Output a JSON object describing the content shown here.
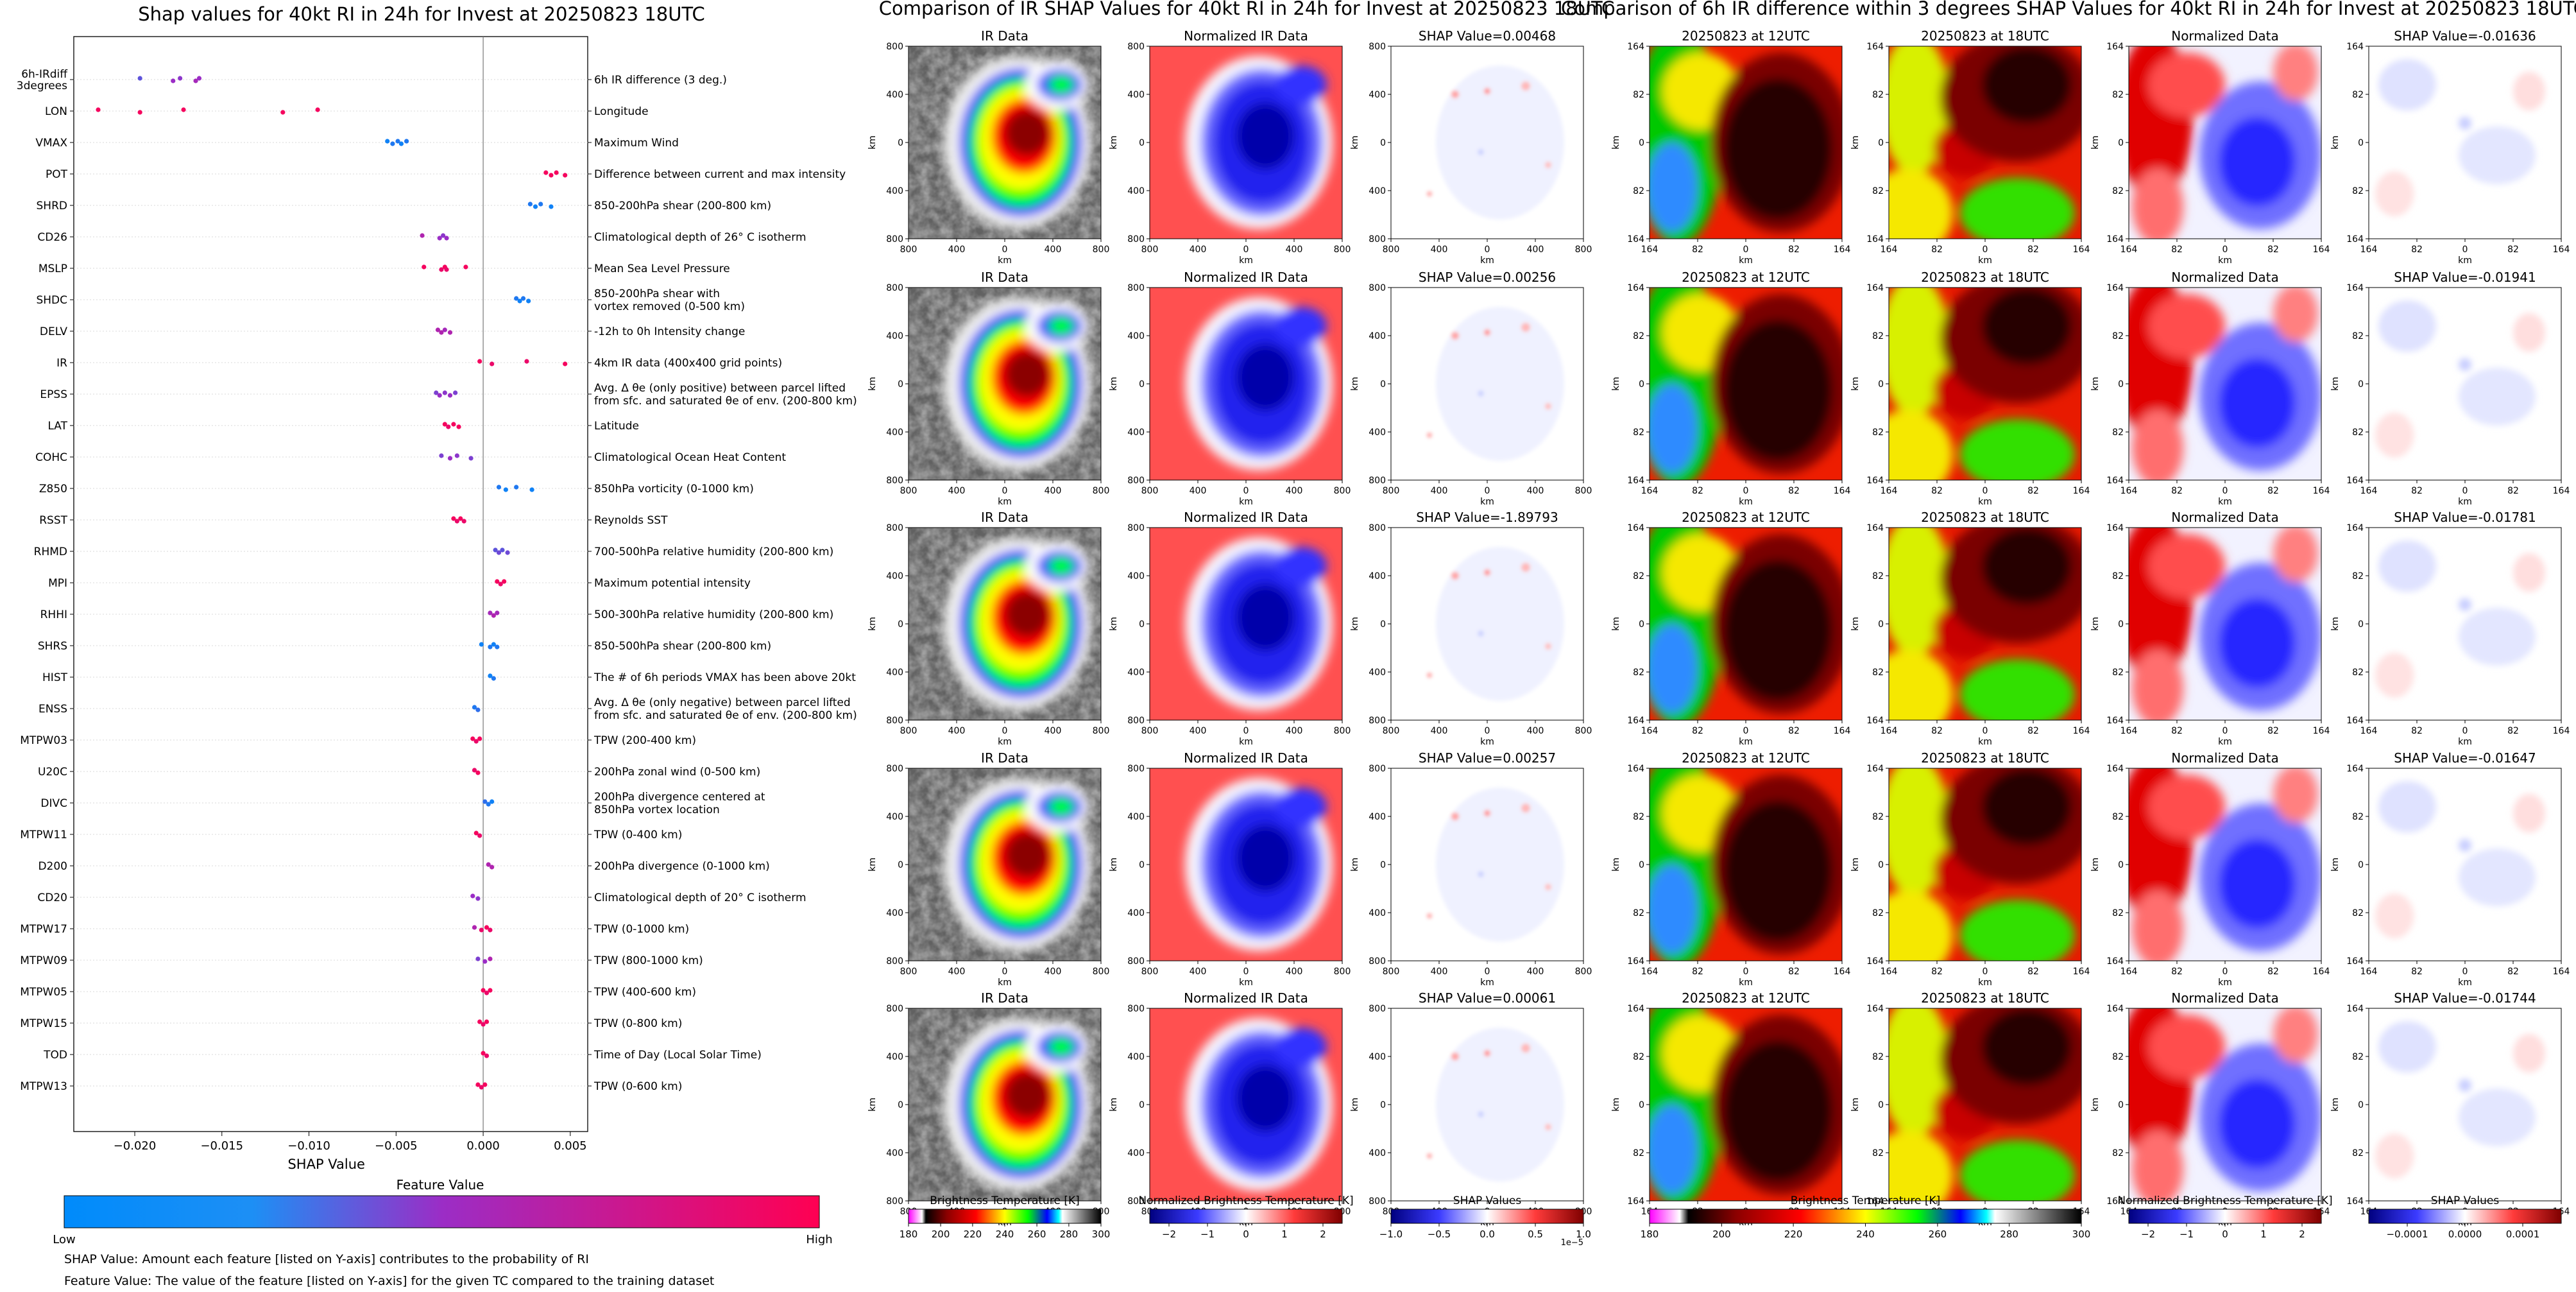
{
  "chart_data": [
    {
      "type": "scatter",
      "title": "Shap values for 40kt RI in 24h for Invest at 20250823 18UTC",
      "xlabel": "SHAP Value",
      "xlim": [
        -0.0235,
        0.006
      ],
      "xticks": [
        -0.02,
        -0.015,
        -0.01,
        -0.005,
        0.0,
        0.005
      ],
      "xtick_labels": [
        "−0.020",
        "−0.015",
        "−0.010",
        "−0.005",
        "0.000",
        "0.005"
      ],
      "grid": false,
      "colorbar": {
        "title": "Feature Value",
        "low_label": "Low",
        "high_label": "High",
        "low_color": "#008bfb",
        "mid_color": "#9b2dc6",
        "high_color": "#ff0052"
      },
      "features": [
        {
          "name": "6h-IRdiff\n3degrees",
          "desc": "6h IR difference (3 deg.)",
          "points": [
            [
              -0.0197,
              0.3
            ],
            [
              -0.0178,
              0.5
            ],
            [
              -0.0174,
              0.45
            ],
            [
              -0.0165,
              0.55
            ],
            [
              -0.0163,
              0.5
            ]
          ]
        },
        {
          "name": "LON",
          "desc": "Longitude",
          "points": [
            [
              -0.0221,
              0.95
            ],
            [
              -0.0197,
              0.95
            ],
            [
              -0.0172,
              0.95
            ],
            [
              -0.0115,
              0.95
            ],
            [
              -0.0095,
              0.95
            ]
          ]
        },
        {
          "name": "VMAX",
          "desc": "Maximum Wind",
          "points": [
            [
              -0.0055,
              0.05
            ],
            [
              -0.0052,
              0.1
            ],
            [
              -0.0049,
              0.1
            ],
            [
              -0.0047,
              0.05
            ],
            [
              -0.0044,
              0.1
            ]
          ]
        },
        {
          "name": "POT",
          "desc": "Difference between current and max intensity",
          "points": [
            [
              0.0036,
              0.95
            ],
            [
              0.0039,
              0.95
            ],
            [
              0.0042,
              0.95
            ],
            [
              0.0047,
              0.95
            ]
          ]
        },
        {
          "name": "SHRD",
          "desc": "850-200hPa shear (200-800 km)",
          "points": [
            [
              0.0027,
              0.1
            ],
            [
              0.003,
              0.05
            ],
            [
              0.0033,
              0.1
            ],
            [
              0.0039,
              0.05
            ]
          ]
        },
        {
          "name": "CD26",
          "desc": "Climatological depth of 26° C isotherm",
          "points": [
            [
              -0.0035,
              0.6
            ],
            [
              -0.0025,
              0.5
            ],
            [
              -0.0023,
              0.45
            ],
            [
              -0.0021,
              0.5
            ]
          ]
        },
        {
          "name": "MSLP",
          "desc": "Mean Sea Level Pressure",
          "points": [
            [
              -0.0034,
              0.95
            ],
            [
              -0.0024,
              0.9
            ],
            [
              -0.0022,
              0.95
            ],
            [
              -0.0021,
              0.9
            ],
            [
              -0.001,
              0.95
            ]
          ]
        },
        {
          "name": "SHDC",
          "desc": "850-200hPa shear with\nvortex removed (0-500 km)",
          "points": [
            [
              0.0019,
              0.1
            ],
            [
              0.0021,
              0.05
            ],
            [
              0.0023,
              0.1
            ],
            [
              0.0026,
              0.05
            ]
          ]
        },
        {
          "name": "DELV",
          "desc": "-12h to 0h Intensity change",
          "points": [
            [
              -0.0026,
              0.6
            ],
            [
              -0.0024,
              0.6
            ],
            [
              -0.0022,
              0.55
            ],
            [
              -0.0019,
              0.6
            ]
          ]
        },
        {
          "name": "IR",
          "desc": "4km IR data (400x400 grid points)",
          "points": [
            [
              -0.0002,
              0.95
            ],
            [
              0.0005,
              0.9
            ],
            [
              0.0025,
              0.9
            ],
            [
              0.0047,
              0.95
            ]
          ]
        },
        {
          "name": "EPSS",
          "desc": "Avg. Δ θe (only positive) between parcel lifted\nfrom sfc. and saturated θe of env. (200-800 km)",
          "points": [
            [
              -0.0027,
              0.4
            ],
            [
              -0.0025,
              0.5
            ],
            [
              -0.0022,
              0.45
            ],
            [
              -0.0019,
              0.5
            ],
            [
              -0.0016,
              0.4
            ]
          ]
        },
        {
          "name": "LAT",
          "desc": "Latitude",
          "points": [
            [
              -0.0022,
              0.95
            ],
            [
              -0.002,
              0.9
            ],
            [
              -0.0017,
              0.95
            ],
            [
              -0.0014,
              0.95
            ]
          ]
        },
        {
          "name": "COHC",
          "desc": "Climatological Ocean Heat Content",
          "points": [
            [
              -0.0024,
              0.4
            ],
            [
              -0.0019,
              0.5
            ],
            [
              -0.0015,
              0.45
            ],
            [
              -0.0007,
              0.4
            ]
          ]
        },
        {
          "name": "Z850",
          "desc": "850hPa vorticity (0-1000 km)",
          "points": [
            [
              0.0009,
              0.1
            ],
            [
              0.0013,
              0.05
            ],
            [
              0.0019,
              0.1
            ],
            [
              0.0028,
              0.05
            ]
          ]
        },
        {
          "name": "RSST",
          "desc": "Reynolds SST",
          "points": [
            [
              -0.0017,
              0.95
            ],
            [
              -0.0015,
              0.9
            ],
            [
              -0.0013,
              0.95
            ],
            [
              -0.0011,
              0.9
            ]
          ]
        },
        {
          "name": "RHMD",
          "desc": "700-500hPa relative humidity (200-800 km)",
          "points": [
            [
              0.0007,
              0.3
            ],
            [
              0.0009,
              0.35
            ],
            [
              0.0011,
              0.3
            ],
            [
              0.0014,
              0.35
            ]
          ]
        },
        {
          "name": "MPI",
          "desc": "Maximum potential intensity",
          "points": [
            [
              0.0008,
              0.95
            ],
            [
              0.001,
              0.9
            ],
            [
              0.0012,
              0.95
            ]
          ]
        },
        {
          "name": "RHHI",
          "desc": "500-300hPa relative humidity (200-800 km)",
          "points": [
            [
              0.0004,
              0.55
            ],
            [
              0.0006,
              0.6
            ],
            [
              0.0008,
              0.55
            ]
          ]
        },
        {
          "name": "SHRS",
          "desc": "850-500hPa shear (200-800 km)",
          "points": [
            [
              -0.0001,
              0.05
            ],
            [
              0.0004,
              0.1
            ],
            [
              0.0006,
              0.05
            ],
            [
              0.0008,
              0.1
            ]
          ]
        },
        {
          "name": "HIST",
          "desc": "The # of 6h periods VMAX has been above 20kt",
          "points": [
            [
              0.0004,
              0.05
            ],
            [
              0.0006,
              0.1
            ]
          ]
        },
        {
          "name": "ENSS",
          "desc": "Avg. Δ θe (only negative) between parcel lifted\nfrom sfc. and saturated θe of env. (200-800 km)",
          "points": [
            [
              -0.0005,
              0.1
            ],
            [
              -0.0003,
              0.15
            ]
          ]
        },
        {
          "name": "MTPW03",
          "desc": "TPW (200-400 km)",
          "points": [
            [
              -0.0006,
              0.95
            ],
            [
              -0.0004,
              0.9
            ],
            [
              -0.0002,
              0.95
            ]
          ]
        },
        {
          "name": "U20C",
          "desc": "200hPa zonal wind (0-500 km)",
          "points": [
            [
              -0.0005,
              0.9
            ],
            [
              -0.0003,
              0.95
            ]
          ]
        },
        {
          "name": "DIVC",
          "desc": "200hPa divergence centered at\n850hPa vortex location",
          "points": [
            [
              0.0001,
              0.15
            ],
            [
              0.0003,
              0.1
            ],
            [
              0.0005,
              0.05
            ]
          ]
        },
        {
          "name": "MTPW11",
          "desc": "TPW (0-400 km)",
          "points": [
            [
              -0.0004,
              0.95
            ],
            [
              -0.0002,
              0.9
            ]
          ]
        },
        {
          "name": "D200",
          "desc": "200hPa divergence (0-1000 km)",
          "points": [
            [
              0.0003,
              0.6
            ],
            [
              0.0005,
              0.6
            ]
          ]
        },
        {
          "name": "CD20",
          "desc": "Climatological depth of 20° C isotherm",
          "points": [
            [
              -0.0006,
              0.5
            ],
            [
              -0.0003,
              0.45
            ]
          ]
        },
        {
          "name": "MTPW17",
          "desc": "TPW (0-1000 km)",
          "points": [
            [
              -0.0005,
              0.6
            ],
            [
              -0.0001,
              0.9
            ],
            [
              0.0002,
              0.95
            ],
            [
              0.0004,
              0.9
            ]
          ]
        },
        {
          "name": "MTPW09",
          "desc": "TPW (800-1000 km)",
          "points": [
            [
              -0.0003,
              0.4
            ],
            [
              0.0001,
              0.5
            ],
            [
              0.0004,
              0.6
            ]
          ]
        },
        {
          "name": "MTPW05",
          "desc": "TPW (400-600 km)",
          "points": [
            [
              0.0,
              0.95
            ],
            [
              0.0002,
              0.9
            ],
            [
              0.0004,
              0.95
            ]
          ]
        },
        {
          "name": "MTPW15",
          "desc": "TPW (0-800 km)",
          "points": [
            [
              -0.0002,
              0.95
            ],
            [
              0.0,
              0.9
            ],
            [
              0.0002,
              0.95
            ]
          ]
        },
        {
          "name": "TOD",
          "desc": "Time of Day (Local Solar Time)",
          "points": [
            [
              0.0,
              0.95
            ],
            [
              0.0002,
              0.9
            ]
          ]
        },
        {
          "name": "MTPW13",
          "desc": "TPW (0-600 km)",
          "points": [
            [
              -0.0003,
              0.95
            ],
            [
              -0.0001,
              0.9
            ],
            [
              0.0001,
              0.95
            ]
          ]
        }
      ]
    },
    {
      "type": "heatmap",
      "title": "Comparison of IR SHAP Values for 40kt RI in 24h for Invest at 20250823 18UTC",
      "columns": [
        {
          "title": "IR Data",
          "kind": "ir"
        },
        {
          "title": "Normalized IR Data",
          "kind": "norm"
        },
        {
          "title": "SHAP Value",
          "kind": "shap"
        }
      ],
      "shap_values": [
        "0.00468",
        "0.00256",
        "-1.89793",
        "0.00257",
        "0.00061"
      ],
      "xlabel": "km",
      "ylabel": "km",
      "xticks": [
        "800",
        "400",
        "0",
        "400",
        "800"
      ],
      "yticks": [
        "800",
        "400",
        "0",
        "400",
        "800"
      ],
      "colorbars": [
        {
          "label": "Brightness Temperature [K]",
          "ticks": [
            "180",
            "200",
            "220",
            "240",
            "260",
            "280",
            "300"
          ]
        },
        {
          "label": "Normalized Brightness Temperature [K]",
          "ticks": [
            "−2",
            "−1",
            "0",
            "1",
            "2"
          ]
        },
        {
          "label": "SHAP Values",
          "ticks": [
            "−1.0",
            "−0.5",
            "0.0",
            "0.5",
            "1.0"
          ],
          "offset": "1e−5"
        }
      ]
    },
    {
      "type": "heatmap",
      "title": "Comparison of 6h IR difference within 3 degrees SHAP Values for 40kt RI in 24h for Invest at 20250823 18UTC",
      "columns": [
        {
          "title": "20250823 at 12UTC",
          "kind": "ir12"
        },
        {
          "title": "20250823 at 18UTC",
          "kind": "ir18"
        },
        {
          "title": "Normalized Data",
          "kind": "normd"
        },
        {
          "title": "SHAP Value",
          "kind": "shap2"
        }
      ],
      "shap_values": [
        "-0.01636",
        "-0.01941",
        "-0.01781",
        "-0.01647",
        "-0.01744"
      ],
      "xlabel": "km",
      "ylabel": "km",
      "xticks": [
        "164",
        "82",
        "0",
        "82",
        "164"
      ],
      "yticks": [
        "164",
        "82",
        "0",
        "82",
        "164"
      ],
      "colorbars": [
        {
          "label": "Brightness Temperature [K]",
          "ticks": [
            "180",
            "200",
            "220",
            "240",
            "260",
            "280",
            "300"
          ]
        },
        {
          "label": "Normalized Brightness Temperature [K]",
          "ticks": [
            "−2",
            "−1",
            "0",
            "1",
            "2"
          ]
        },
        {
          "label": "SHAP Values",
          "ticks": [
            "−0.0001",
            "0.0000",
            "0.0001"
          ]
        }
      ]
    }
  ],
  "footnotes": [
    "SHAP Value: Amount each feature [listed on Y-axis] contributes to the probability of RI",
    "Feature Value: The value of the feature [listed on Y-axis] for the given TC compared to the training dataset"
  ]
}
